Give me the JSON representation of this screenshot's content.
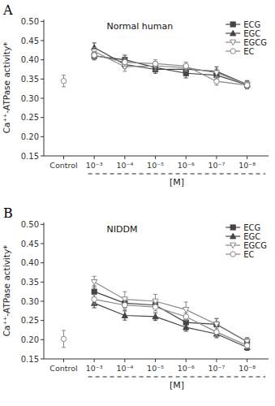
{
  "chart_data": [
    {
      "type": "line",
      "title": "Normal human",
      "annotations": [
        "A"
      ],
      "x_label": "[M]",
      "y_label": "Ca⁺⁺-ATPase activity*",
      "categories": [
        "Control",
        "10⁻³",
        "10⁻⁴",
        "10⁻⁵",
        "10⁻⁶",
        "10⁻⁷",
        "10⁻⁸"
      ],
      "ylim": [
        0.15,
        0.505
      ],
      "yticks": [
        0.15,
        {
          "value": 0.2,
          "label": "0.20"
        },
        0.25,
        {
          "value": 0.3,
          "label": "0.30"
        },
        0.35,
        {
          "value": 0.4,
          "label": "0.40"
        },
        0.45,
        {
          "value": 0.5,
          "label": "0.50"
        }
      ],
      "grid": false,
      "legend": "upper right",
      "series": [
        {
          "name": "ECG",
          "color": "#444444",
          "marker": "square",
          "line_style": "solid",
          "values": [
            null,
            0.41,
            0.4,
            0.38,
            0.365,
            0.36,
            0.335
          ],
          "errors": [
            null,
            0.01,
            0.012,
            0.01,
            0.012,
            0.01,
            0.01
          ]
        },
        {
          "name": "EGC",
          "color": "#444444",
          "marker": "triangle-up",
          "line_style": "solid",
          "values": [
            null,
            0.432,
            0.388,
            0.375,
            0.376,
            0.37,
            0.336
          ],
          "errors": [
            null,
            0.012,
            0.01,
            0.01,
            0.01,
            0.012,
            0.01
          ]
        },
        {
          "name": "EGCG",
          "color": "#888888",
          "marker": "triangle-down-open",
          "line_style": "solid",
          "values": [
            null,
            0.422,
            0.382,
            0.384,
            0.38,
            0.366,
            0.336
          ],
          "errors": [
            null,
            0.01,
            0.012,
            0.012,
            0.01,
            0.01,
            0.008
          ]
        },
        {
          "name": "EC",
          "color": "#888888",
          "marker": "circle-open",
          "line_style": "solid",
          "values": [
            null,
            0.412,
            0.394,
            0.39,
            0.384,
            0.344,
            0.334
          ],
          "errors": [
            null,
            0.01,
            0.01,
            0.01,
            0.01,
            0.01,
            0.01
          ]
        },
        {
          "color": "#888888",
          "marker": "circle-open",
          "line_style": "none",
          "values": [
            0.345,
            null,
            null,
            null,
            null,
            null,
            null
          ],
          "errors": [
            0.015,
            null,
            null,
            null,
            null,
            null,
            null
          ]
        }
      ]
    },
    {
      "type": "line",
      "title": "NIDDM",
      "annotations": [
        "B"
      ],
      "x_label": "[M]",
      "y_label": "Ca⁺⁺-ATPase activity*",
      "categories": [
        "Control",
        "10⁻³",
        "10⁻⁴",
        "10⁻⁵",
        "10⁻⁶",
        "10⁻⁷",
        "10⁻⁸"
      ],
      "ylim": [
        0.15,
        0.505
      ],
      "yticks": [
        0.15,
        {
          "value": 0.2,
          "label": "0.20"
        },
        0.25,
        {
          "value": 0.3,
          "label": "0.30"
        },
        0.35,
        {
          "value": 0.4,
          "label": "0.40"
        },
        0.45,
        {
          "value": 0.5,
          "label": "0.50"
        }
      ],
      "grid": false,
      "legend": "upper right",
      "series": [
        {
          "name": "ECG",
          "color": "#444444",
          "marker": "square",
          "line_style": "solid",
          "values": [
            null,
            0.325,
            0.295,
            0.29,
            0.245,
            0.24,
            0.195
          ],
          "errors": [
            null,
            0.015,
            0.012,
            0.01,
            0.012,
            0.015,
            0.01
          ]
        },
        {
          "name": "EGC",
          "color": "#444444",
          "marker": "triangle-up",
          "line_style": "solid",
          "values": [
            null,
            0.295,
            0.263,
            0.26,
            0.232,
            0.215,
            0.18
          ],
          "errors": [
            null,
            0.012,
            0.012,
            0.01,
            0.01,
            0.01,
            0.008
          ]
        },
        {
          "name": "EGCG",
          "color": "#888888",
          "marker": "triangle-down-open",
          "line_style": "solid",
          "values": [
            null,
            0.35,
            0.305,
            0.3,
            0.278,
            0.24,
            0.195
          ],
          "errors": [
            null,
            0.015,
            0.02,
            0.018,
            0.02,
            0.015,
            0.01
          ]
        },
        {
          "name": "EC",
          "color": "#888888",
          "marker": "circle-open",
          "line_style": "solid",
          "values": [
            null,
            0.305,
            0.29,
            0.285,
            0.26,
            0.22,
            0.185
          ],
          "errors": [
            null,
            0.012,
            0.012,
            0.01,
            0.01,
            0.01,
            0.008
          ]
        },
        {
          "color": "#888888",
          "marker": "circle-open",
          "line_style": "none",
          "values": [
            0.202,
            null,
            null,
            null,
            null,
            null,
            null
          ],
          "errors": [
            0.022,
            null,
            null,
            null,
            null,
            null,
            null
          ]
        }
      ]
    }
  ]
}
